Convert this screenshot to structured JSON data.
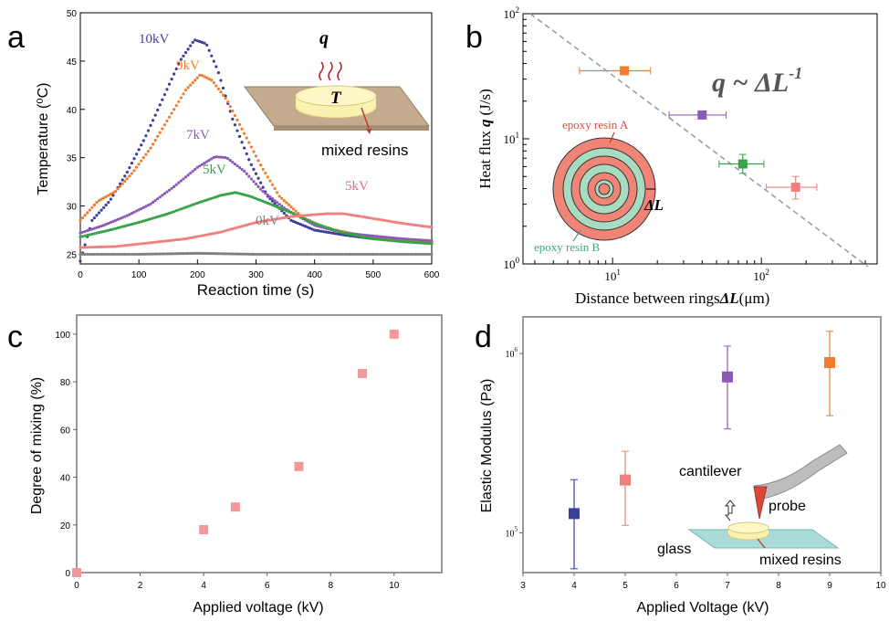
{
  "colors": {
    "blue": "#3a3f9a",
    "orange": "#f07d32",
    "purple": "#8c5bb7",
    "green": "#36a347",
    "pink": "#f08080",
    "gray": "#7f7f7f",
    "salmon": "#f2989a",
    "teal": "#3ea779",
    "ring_green": "#a8dcc0",
    "board": "#c4ab8e",
    "disk": "#fbf2b2",
    "glass": "#a9dcd9",
    "dash": "#999999"
  },
  "chart_data": [
    {
      "panel": "a",
      "type": "scatter",
      "xlabel": "Reaction time (s)",
      "ylabel": "Temperature (⁰C)",
      "xlim": [
        0,
        600
      ],
      "ylim": [
        24,
        50
      ],
      "x_ticks": [
        "0",
        "100",
        "200",
        "300",
        "400",
        "500",
        "600"
      ],
      "y_ticks": [
        "25",
        "30",
        "35",
        "40",
        "45",
        "50"
      ],
      "series": [
        {
          "name": "10kV",
          "color": "blue",
          "x": [
            0,
            20,
            50,
            80,
            110,
            140,
            170,
            195,
            215,
            235,
            260,
            290,
            320,
            360,
            400,
            450,
            500,
            550,
            600
          ],
          "y": [
            24.3,
            28.5,
            30.5,
            33.5,
            37,
            41,
            45,
            47.2,
            46.8,
            44,
            39,
            34.5,
            31,
            28.5,
            27.5,
            27,
            26.6,
            26.4,
            26.2
          ]
        },
        {
          "name": "9kV",
          "color": "orange",
          "x": [
            0,
            30,
            60,
            90,
            120,
            150,
            180,
            205,
            225,
            250,
            280,
            310,
            340,
            380,
            420,
            460,
            500,
            550,
            600
          ],
          "y": [
            28.5,
            30.5,
            31.5,
            33.5,
            36,
            39,
            42,
            43.6,
            43,
            41,
            37.5,
            34,
            31,
            28.8,
            27.7,
            27.2,
            26.8,
            26.5,
            26.3
          ]
        },
        {
          "name": "7kV",
          "color": "purple",
          "x": [
            0,
            40,
            80,
            120,
            160,
            200,
            230,
            250,
            280,
            310,
            350,
            400,
            450,
            500,
            550,
            600
          ],
          "y": [
            27.2,
            28,
            29,
            30.2,
            32,
            34,
            35.1,
            35,
            33.6,
            31.6,
            29.7,
            28,
            27.2,
            26.9,
            26.6,
            26.4
          ]
        },
        {
          "name": "5kV",
          "color": "green",
          "x": [
            0,
            50,
            100,
            150,
            200,
            240,
            265,
            290,
            320,
            360,
            400,
            450,
            500,
            550,
            600
          ],
          "y": [
            26.8,
            27.5,
            28.3,
            29.2,
            30.3,
            31.1,
            31.4,
            31,
            30.3,
            29.3,
            28.2,
            27.2,
            26.6,
            26.3,
            26.1
          ]
        },
        {
          "name": "5kV",
          "color": "pink",
          "x": [
            0,
            60,
            120,
            180,
            240,
            300,
            360,
            420,
            450,
            500,
            550,
            600
          ],
          "y": [
            25.7,
            25.8,
            26.2,
            26.6,
            27.3,
            28.3,
            28.9,
            29.2,
            29.2,
            28.7,
            28.2,
            27.8
          ]
        },
        {
          "name": "0kV",
          "color": "gray",
          "x": [
            0,
            100,
            200,
            300,
            400,
            500,
            600
          ],
          "y": [
            25,
            25,
            25.1,
            25,
            25,
            25,
            25
          ]
        }
      ],
      "inset_label_q": "q",
      "inset_label_T": "T",
      "inset_caption": "mixed resins"
    },
    {
      "panel": "b",
      "type": "scatter",
      "xscale": "log",
      "yscale": "log",
      "xlabel": "Distance between rings",
      "xlabel_symbol": "ΔL",
      "xlabel_unit": "(μm)",
      "ylabel": "Heat flux",
      "ylabel_symbol": "q",
      "ylabel_unit": "(J/s)",
      "xlim": [
        2.5,
        600
      ],
      "ylim": [
        1,
        100
      ],
      "x_ticks": [
        {
          "base": "10",
          "exp": "1",
          "value": 10
        },
        {
          "base": "10",
          "exp": "2",
          "value": 100
        }
      ],
      "y_ticks": [
        {
          "base": "10",
          "exp": "0",
          "value": 1
        },
        {
          "base": "10",
          "exp": "1",
          "value": 10
        },
        {
          "base": "10",
          "exp": "2",
          "value": 100
        }
      ],
      "points": [
        {
          "x": 12,
          "y": 35,
          "xerr": [
            6,
            18
          ],
          "yerr": [
            33,
            37
          ],
          "color": "orange"
        },
        {
          "x": 40,
          "y": 15.5,
          "xerr": [
            24,
            58
          ],
          "yerr": [
            15,
            16
          ],
          "color": "purple"
        },
        {
          "x": 75,
          "y": 6.3,
          "xerr": [
            52,
            104
          ],
          "yerr": [
            5.3,
            7.5
          ],
          "color": "green"
        },
        {
          "x": 170,
          "y": 4.1,
          "xerr": [
            108,
            236
          ],
          "yerr": [
            3.3,
            5
          ],
          "color": "pink"
        }
      ],
      "fit_line": {
        "x": [
          2.8,
          520
        ],
        "y": [
          100,
          0.95
        ],
        "style": "dashed"
      },
      "formula_left": "q ~ ΔL",
      "formula_exp": "-1",
      "inset_label_a": "epoxy resin A",
      "inset_label_b": "epoxy resin B",
      "inset_label_dl": "ΔL"
    },
    {
      "panel": "c",
      "type": "scatter",
      "xlabel": "Applied voltage (kV)",
      "ylabel": "Degree of mixing (%)",
      "xlim": [
        0,
        11.5
      ],
      "ylim": [
        0,
        108
      ],
      "x_ticks": [
        "0",
        "2",
        "4",
        "6",
        "8",
        "10"
      ],
      "y_ticks": [
        "0",
        "20",
        "40",
        "60",
        "80",
        "100"
      ],
      "x": [
        0,
        4,
        5,
        7,
        9,
        10
      ],
      "y": [
        0,
        18,
        27.5,
        44.5,
        83.5,
        100
      ],
      "color": "salmon"
    },
    {
      "panel": "d",
      "type": "scatter",
      "yscale": "log",
      "xlabel": "Applied Voltage (kV)",
      "ylabel": "Elastic Modulus (Pa)",
      "xlim": [
        3,
        10
      ],
      "ylim": [
        60000,
        1600000
      ],
      "x_ticks": [
        "3",
        "4",
        "5",
        "6",
        "7",
        "8",
        "9",
        "10"
      ],
      "y_ticks": [
        {
          "base": "10",
          "exp": "5",
          "value": 100000
        },
        {
          "base": "10",
          "exp": "6",
          "value": 1000000
        }
      ],
      "points": [
        {
          "x": 4,
          "y": 128000,
          "yerr": [
            63000,
            198000
          ],
          "color": "blue"
        },
        {
          "x": 5,
          "y": 197000,
          "yerr": [
            110000,
            285000
          ],
          "color": "pink"
        },
        {
          "x": 7,
          "y": 740000,
          "yerr": [
            380000,
            1100000
          ],
          "color": "purple"
        },
        {
          "x": 9,
          "y": 890000,
          "yerr": [
            450000,
            1330000
          ],
          "color": "orange"
        }
      ],
      "inset_cantilever": "cantilever",
      "inset_probe": "probe",
      "inset_glass": "glass",
      "inset_resins": "mixed resins"
    }
  ],
  "panel_letters": {
    "a": "a",
    "b": "b",
    "c": "c",
    "d": "d"
  }
}
